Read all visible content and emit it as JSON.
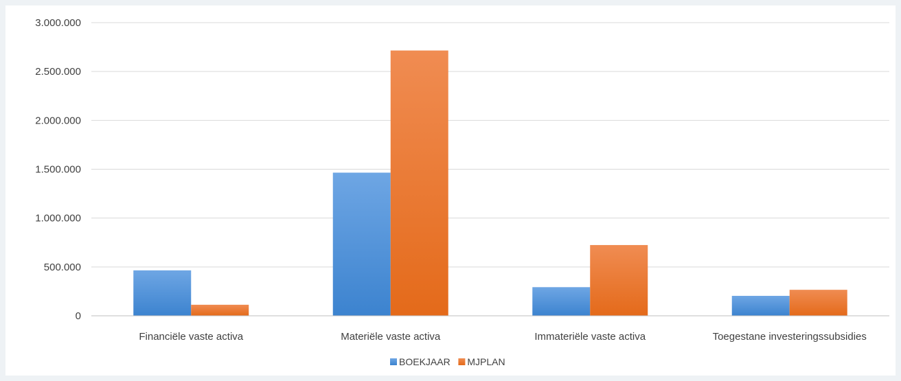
{
  "chart_data": {
    "type": "bar",
    "categories": [
      "Financiële vaste activa",
      "Materiële vaste activa",
      "Immateriële vaste activa",
      "Toegestane investeringssubsidies"
    ],
    "series": [
      {
        "name": "BOEKJAAR",
        "values": [
          465000,
          1465000,
          293000,
          204000
        ],
        "color": "#4a8fd8"
      },
      {
        "name": "MJPLAN",
        "values": [
          113000,
          2715000,
          724000,
          266000
        ],
        "color": "#ed7d31"
      }
    ],
    "title": "",
    "xlabel": "",
    "ylabel": "",
    "ylim": [
      0,
      3000000
    ],
    "yticks": [
      0,
      500000,
      1000000,
      1500000,
      2000000,
      2500000,
      3000000
    ],
    "ytick_labels": [
      "0",
      "500.000",
      "1.000.000",
      "1.500.000",
      "2.000.000",
      "2.500.000",
      "3.000.000"
    ],
    "grid": true,
    "legend": "bottom-center"
  }
}
